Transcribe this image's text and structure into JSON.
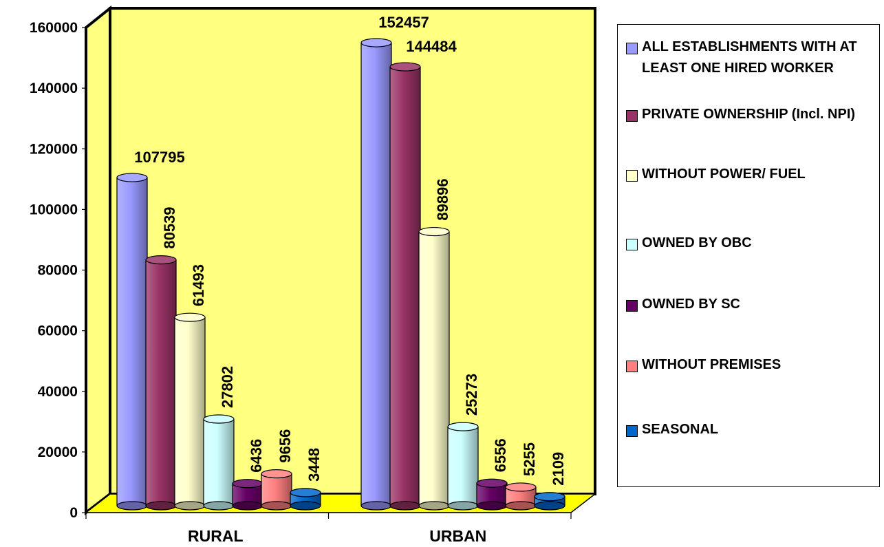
{
  "chart_data": {
    "type": "bar",
    "categories": [
      "RURAL",
      "URBAN"
    ],
    "series": [
      {
        "name": "ALL ESTABLISHMENTS WITH AT LEAST ONE HIRED WORKER",
        "values": [
          107795,
          152457
        ]
      },
      {
        "name": "PRIVATE OWNERSHIP (Incl. NPI)",
        "values": [
          80539,
          144484
        ]
      },
      {
        "name": "WITHOUT  POWER/ FUEL",
        "values": [
          61493,
          89896
        ]
      },
      {
        "name": "OWNED BY OBC",
        "values": [
          27802,
          25273
        ]
      },
      {
        "name": "OWNED BY SC",
        "values": [
          6436,
          6556
        ]
      },
      {
        "name": "WITHOUT PREMISES",
        "values": [
          9656,
          5255
        ]
      },
      {
        "name": "SEASONAL",
        "values": [
          3448,
          2109
        ]
      }
    ],
    "ylim": [
      0,
      160000
    ],
    "yticks": [
      0,
      20000,
      40000,
      60000,
      80000,
      100000,
      120000,
      140000,
      160000
    ],
    "colors": [
      "#9999ff",
      "#993366",
      "#ffffcc",
      "#ccffff",
      "#660066",
      "#ff8080",
      "#0066cc"
    ],
    "background": "#ffff80",
    "floor_color": "#ffff00",
    "legend_position": "right",
    "grid": false
  }
}
